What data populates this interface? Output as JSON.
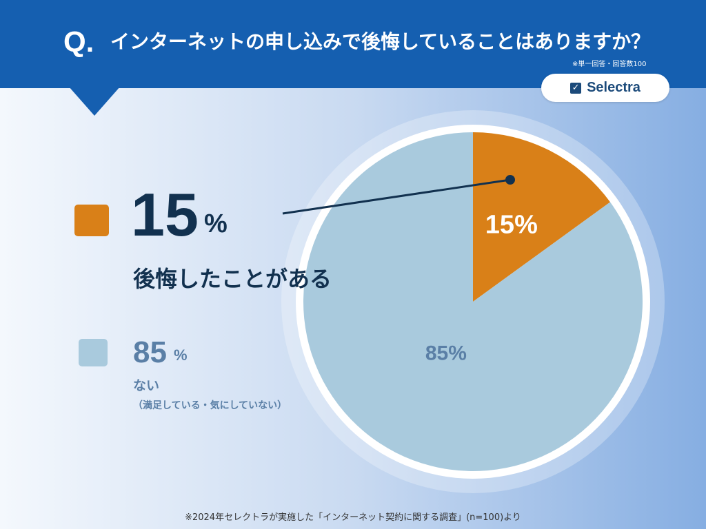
{
  "header": {
    "q_mark": "Q.",
    "question": "インターネットの申し込みで後悔していることはありますか？",
    "respondents": "※単一回答・回答数100"
  },
  "brand": {
    "name": "Selectra",
    "icon": "check-box-icon",
    "color": "#1b4a7a"
  },
  "legend": {
    "regret": {
      "value": "15",
      "unit": "%",
      "label": "後悔したことがある",
      "color": "#d98018"
    },
    "no_regret": {
      "value": "85",
      "unit": "%",
      "label": "ない",
      "note": "（満足している・気にしていない）",
      "color": "#a9cadd"
    }
  },
  "footer": "※2024年セレクトラが実施した「インターネット契約に関する調査」(n=100)より",
  "chart_data": {
    "type": "pie",
    "title": "インターネットの申し込みで後悔していることはありますか？",
    "slices": [
      {
        "label": "後悔したことがある",
        "value": 15,
        "display": "15%",
        "color": "#d98018"
      },
      {
        "label": "ない",
        "value": 85,
        "display": "85%",
        "color": "#a9cadd"
      }
    ],
    "legend_position": "left"
  }
}
